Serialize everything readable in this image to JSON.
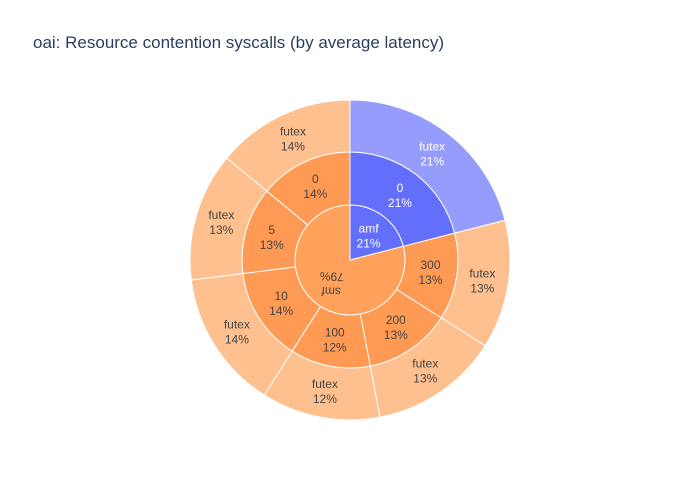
{
  "chart_data": {
    "type": "sunburst",
    "title": "oai: Resource contention syscalls (by average latency)",
    "colors": {
      "smf": [
        "#ffa15a",
        "#ff9a55",
        "#ffc08f"
      ],
      "amf": [
        "#636efa",
        "#636efa",
        "#959cfb"
      ],
      "border": "#ffffff",
      "dark_text": "#444444",
      "light_text": "#ffffff"
    },
    "nodes": [
      {
        "label": "amf",
        "percent": "21%",
        "value": 21,
        "children": [
          {
            "label": "0",
            "percent": "21%",
            "value": 21,
            "children": [
              {
                "label": "futex",
                "percent": "21%",
                "value": 21
              }
            ]
          }
        ]
      },
      {
        "label": "smf",
        "percent": "79%",
        "value": 79,
        "children": [
          {
            "label": "300",
            "percent": "13%",
            "value": 13,
            "children": [
              {
                "label": "futex",
                "percent": "13%",
                "value": 13
              }
            ]
          },
          {
            "label": "200",
            "percent": "13%",
            "value": 13,
            "children": [
              {
                "label": "futex",
                "percent": "13%",
                "value": 13
              }
            ]
          },
          {
            "label": "100",
            "percent": "12%",
            "value": 12,
            "children": [
              {
                "label": "futex",
                "percent": "12%",
                "value": 12
              }
            ]
          },
          {
            "label": "10",
            "percent": "14%",
            "value": 14,
            "children": [
              {
                "label": "futex",
                "percent": "14%",
                "value": 14
              }
            ]
          },
          {
            "label": "5",
            "percent": "13%",
            "value": 13,
            "children": [
              {
                "label": "futex",
                "percent": "13%",
                "value": 13
              }
            ]
          },
          {
            "label": "0",
            "percent": "14%",
            "value": 14,
            "children": [
              {
                "label": "futex",
                "percent": "14%",
                "value": 14
              }
            ]
          }
        ]
      }
    ]
  }
}
